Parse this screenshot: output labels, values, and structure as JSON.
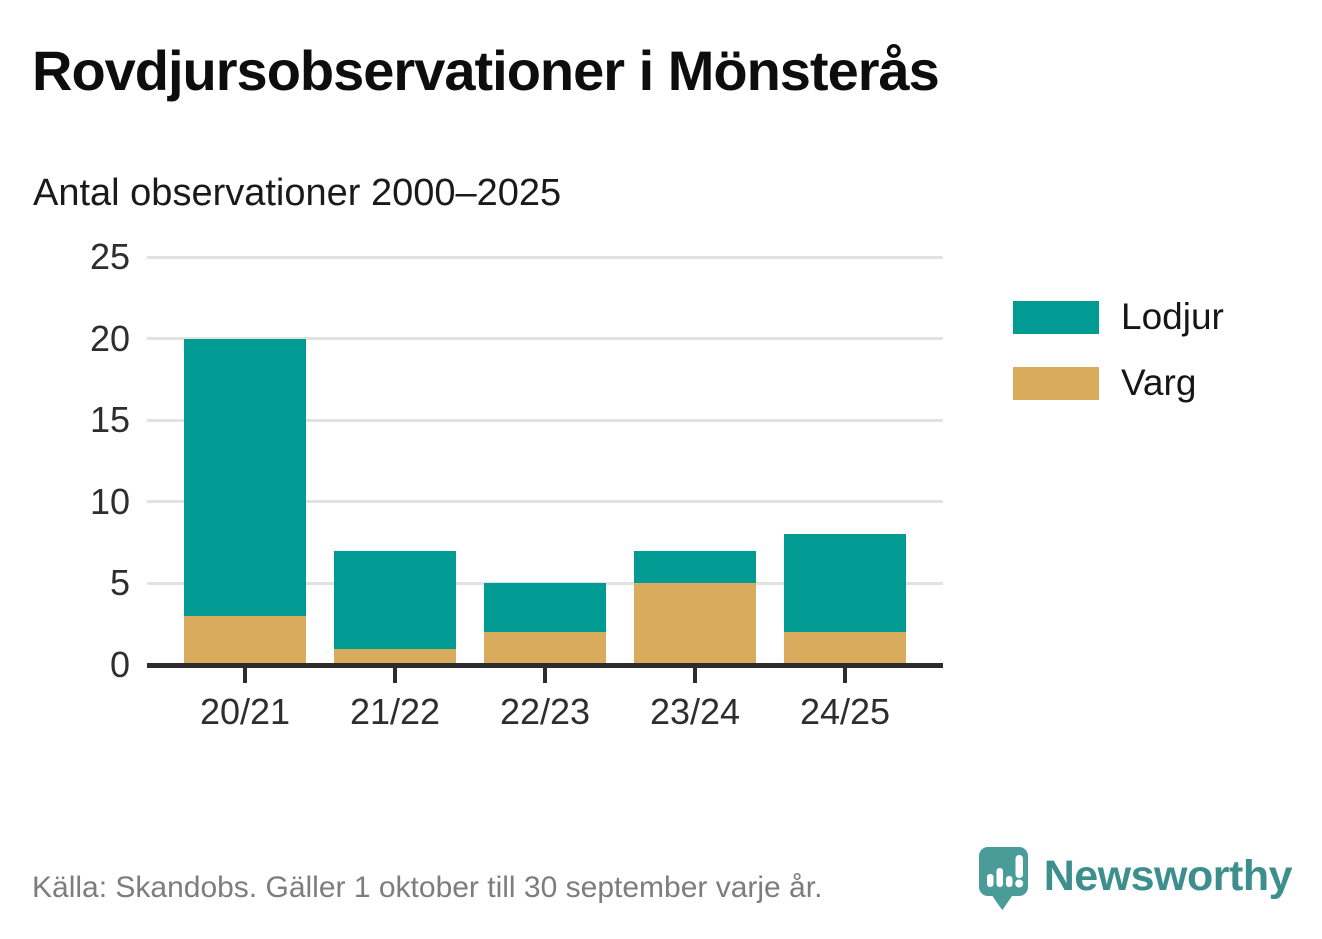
{
  "header": {
    "title": "Rovdjursobservationer i Mönsterås",
    "subtitle": "Antal observationer 2000–2025"
  },
  "chart_data": {
    "type": "bar",
    "stacked": true,
    "title": "Rovdjursobservationer i Mönsterås",
    "subtitle": "Antal observationer 2000–2025",
    "categories": [
      "20/21",
      "21/22",
      "22/23",
      "23/24",
      "24/25"
    ],
    "series": [
      {
        "name": "Varg",
        "color": "#d8ac5c",
        "values": [
          3,
          1,
          2,
          5,
          2
        ]
      },
      {
        "name": "Lodjur",
        "color": "#019b94",
        "values": [
          17,
          6,
          3,
          2,
          6
        ]
      }
    ],
    "totals": [
      20,
      7,
      5,
      7,
      8
    ],
    "xlabel": "",
    "ylabel": "",
    "ylim": [
      0,
      25
    ],
    "yticks": [
      0,
      5,
      10,
      15,
      20,
      25
    ],
    "grid": true,
    "legend_position": "right",
    "legend_order": [
      "Lodjur",
      "Varg"
    ]
  },
  "footer": {
    "source": "Källa: Skandobs. Gäller 1 oktober till 30 september varje år.",
    "brand": "Newsworthy"
  },
  "colors": {
    "lodjur": "#019b94",
    "varg": "#d8ac5c",
    "axis": "#2d2d2d",
    "grid": "#e2e2e2",
    "footer_text": "#7d7d7d",
    "brand_teal": "#3d8f8d",
    "logo_bubble": "#4a9c98"
  }
}
